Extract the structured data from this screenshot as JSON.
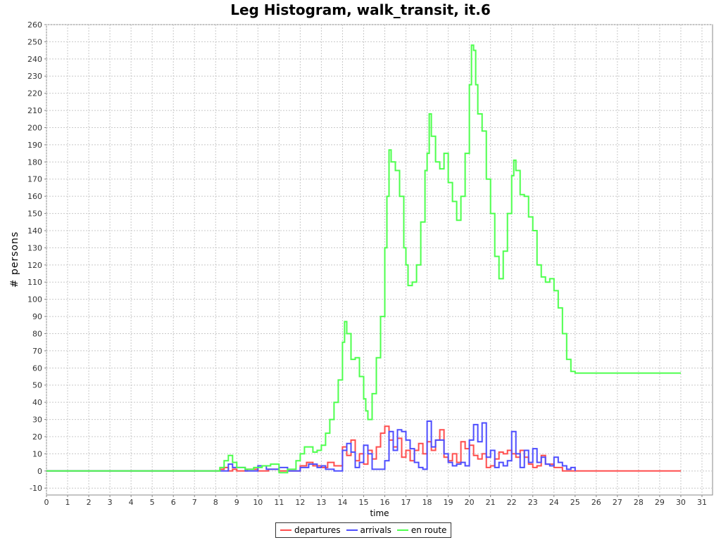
{
  "chart_data": {
    "type": "line",
    "title": "Leg Histogram, walk_transit, it.6",
    "xlabel": "time",
    "ylabel": "# persons",
    "xlim": [
      0,
      31.5
    ],
    "ylim": [
      -14,
      260
    ],
    "x_ticks": [
      0,
      1,
      2,
      3,
      4,
      5,
      6,
      7,
      8,
      9,
      10,
      11,
      12,
      13,
      14,
      15,
      16,
      17,
      18,
      19,
      20,
      21,
      22,
      23,
      24,
      25,
      26,
      27,
      28,
      29,
      30,
      31
    ],
    "y_ticks": [
      -10,
      0,
      10,
      20,
      30,
      40,
      50,
      60,
      70,
      80,
      90,
      100,
      110,
      120,
      130,
      140,
      150,
      160,
      170,
      180,
      190,
      200,
      210,
      220,
      230,
      240,
      250,
      260
    ],
    "grid": true,
    "step": true,
    "legend_position": "bottom",
    "series": [
      {
        "name": "departures",
        "color": "#ff4d4d",
        "points": [
          [
            0,
            0
          ],
          [
            8.0,
            0
          ],
          [
            8.2,
            1
          ],
          [
            8.4,
            2
          ],
          [
            8.6,
            0
          ],
          [
            8.8,
            1
          ],
          [
            9.0,
            0
          ],
          [
            9.5,
            1
          ],
          [
            10.0,
            0
          ],
          [
            10.5,
            1
          ],
          [
            11.0,
            0
          ],
          [
            11.5,
            0
          ],
          [
            12.0,
            3
          ],
          [
            12.3,
            5
          ],
          [
            12.6,
            3
          ],
          [
            13.0,
            2
          ],
          [
            13.3,
            5
          ],
          [
            13.6,
            3
          ],
          [
            14.0,
            14
          ],
          [
            14.2,
            9
          ],
          [
            14.4,
            18
          ],
          [
            14.6,
            6
          ],
          [
            14.8,
            10
          ],
          [
            15.0,
            4
          ],
          [
            15.2,
            12
          ],
          [
            15.4,
            7
          ],
          [
            15.6,
            14
          ],
          [
            15.8,
            22
          ],
          [
            16.0,
            26
          ],
          [
            16.2,
            18
          ],
          [
            16.4,
            14
          ],
          [
            16.6,
            19
          ],
          [
            16.8,
            8
          ],
          [
            17.0,
            12
          ],
          [
            17.2,
            6
          ],
          [
            17.4,
            12
          ],
          [
            17.6,
            16
          ],
          [
            17.8,
            10
          ],
          [
            18.0,
            17
          ],
          [
            18.2,
            12
          ],
          [
            18.4,
            18
          ],
          [
            18.6,
            24
          ],
          [
            18.8,
            8
          ],
          [
            19.0,
            6
          ],
          [
            19.2,
            10
          ],
          [
            19.4,
            5
          ],
          [
            19.6,
            17
          ],
          [
            19.8,
            13
          ],
          [
            20.0,
            15
          ],
          [
            20.2,
            9
          ],
          [
            20.4,
            7
          ],
          [
            20.6,
            10
          ],
          [
            20.8,
            2
          ],
          [
            21.0,
            3
          ],
          [
            21.2,
            7
          ],
          [
            21.4,
            11
          ],
          [
            21.6,
            10
          ],
          [
            21.8,
            12
          ],
          [
            22.0,
            10
          ],
          [
            22.2,
            8
          ],
          [
            22.4,
            12
          ],
          [
            22.6,
            8
          ],
          [
            22.8,
            4
          ],
          [
            23.0,
            2
          ],
          [
            23.2,
            3
          ],
          [
            23.4,
            9
          ],
          [
            23.6,
            4
          ],
          [
            23.8,
            4
          ],
          [
            24.0,
            2
          ],
          [
            24.4,
            0
          ],
          [
            30.0,
            0
          ]
        ]
      },
      {
        "name": "arrivals",
        "color": "#4d4dff",
        "points": [
          [
            0,
            0
          ],
          [
            8.4,
            0
          ],
          [
            8.6,
            4
          ],
          [
            8.8,
            2
          ],
          [
            9.0,
            2
          ],
          [
            9.4,
            0
          ],
          [
            10.0,
            3
          ],
          [
            10.4,
            1
          ],
          [
            11.0,
            2
          ],
          [
            11.4,
            0
          ],
          [
            12.0,
            2
          ],
          [
            12.4,
            4
          ],
          [
            12.8,
            2
          ],
          [
            13.0,
            3
          ],
          [
            13.2,
            1
          ],
          [
            13.6,
            0
          ],
          [
            14.0,
            12
          ],
          [
            14.2,
            16
          ],
          [
            14.4,
            11
          ],
          [
            14.6,
            2
          ],
          [
            14.8,
            5
          ],
          [
            15.0,
            15
          ],
          [
            15.2,
            10
          ],
          [
            15.4,
            1
          ],
          [
            16.0,
            6
          ],
          [
            16.2,
            23
          ],
          [
            16.4,
            12
          ],
          [
            16.6,
            24
          ],
          [
            16.8,
            23
          ],
          [
            17.0,
            18
          ],
          [
            17.2,
            13
          ],
          [
            17.4,
            5
          ],
          [
            17.6,
            2
          ],
          [
            17.8,
            1
          ],
          [
            18.0,
            29
          ],
          [
            18.2,
            14
          ],
          [
            18.4,
            18
          ],
          [
            18.6,
            18
          ],
          [
            18.8,
            10
          ],
          [
            19.0,
            5
          ],
          [
            19.2,
            3
          ],
          [
            19.4,
            4
          ],
          [
            19.6,
            5
          ],
          [
            19.8,
            3
          ],
          [
            20.0,
            18
          ],
          [
            20.2,
            27
          ],
          [
            20.4,
            17
          ],
          [
            20.6,
            28
          ],
          [
            20.8,
            8
          ],
          [
            21.0,
            12
          ],
          [
            21.2,
            2
          ],
          [
            21.4,
            5
          ],
          [
            21.6,
            3
          ],
          [
            21.8,
            6
          ],
          [
            22.0,
            23
          ],
          [
            22.2,
            10
          ],
          [
            22.4,
            2
          ],
          [
            22.6,
            12
          ],
          [
            22.8,
            5
          ],
          [
            23.0,
            13
          ],
          [
            23.2,
            5
          ],
          [
            23.4,
            8
          ],
          [
            23.6,
            4
          ],
          [
            23.8,
            3
          ],
          [
            24.0,
            8
          ],
          [
            24.2,
            5
          ],
          [
            24.4,
            3
          ],
          [
            24.6,
            1
          ],
          [
            24.8,
            2
          ],
          [
            25.0,
            0
          ]
        ]
      },
      {
        "name": "en route",
        "color": "#4dff4d",
        "points": [
          [
            0,
            0
          ],
          [
            8.0,
            0
          ],
          [
            8.2,
            2
          ],
          [
            8.4,
            6
          ],
          [
            8.6,
            9
          ],
          [
            8.8,
            5
          ],
          [
            9.0,
            2
          ],
          [
            9.4,
            1
          ],
          [
            9.8,
            2
          ],
          [
            10.2,
            3
          ],
          [
            10.6,
            4
          ],
          [
            11.0,
            -1
          ],
          [
            11.4,
            1
          ],
          [
            11.8,
            6
          ],
          [
            12.0,
            10
          ],
          [
            12.2,
            14
          ],
          [
            12.4,
            14
          ],
          [
            12.6,
            11
          ],
          [
            12.8,
            12
          ],
          [
            13.0,
            15
          ],
          [
            13.2,
            22
          ],
          [
            13.4,
            30
          ],
          [
            13.6,
            40
          ],
          [
            13.8,
            53
          ],
          [
            14.0,
            75
          ],
          [
            14.1,
            87
          ],
          [
            14.2,
            80
          ],
          [
            14.4,
            65
          ],
          [
            14.6,
            66
          ],
          [
            14.8,
            55
          ],
          [
            15.0,
            42
          ],
          [
            15.1,
            35
          ],
          [
            15.2,
            30
          ],
          [
            15.4,
            45
          ],
          [
            15.6,
            66
          ],
          [
            15.8,
            90
          ],
          [
            16.0,
            130
          ],
          [
            16.1,
            160
          ],
          [
            16.2,
            187
          ],
          [
            16.3,
            180
          ],
          [
            16.5,
            175
          ],
          [
            16.7,
            160
          ],
          [
            16.9,
            130
          ],
          [
            17.0,
            120
          ],
          [
            17.1,
            108
          ],
          [
            17.3,
            110
          ],
          [
            17.5,
            120
          ],
          [
            17.7,
            145
          ],
          [
            17.9,
            175
          ],
          [
            18.0,
            185
          ],
          [
            18.1,
            208
          ],
          [
            18.2,
            195
          ],
          [
            18.4,
            180
          ],
          [
            18.6,
            176
          ],
          [
            18.8,
            185
          ],
          [
            19.0,
            168
          ],
          [
            19.2,
            157
          ],
          [
            19.4,
            146
          ],
          [
            19.6,
            160
          ],
          [
            19.8,
            185
          ],
          [
            20.0,
            225
          ],
          [
            20.1,
            248
          ],
          [
            20.2,
            245
          ],
          [
            20.3,
            225
          ],
          [
            20.4,
            208
          ],
          [
            20.6,
            198
          ],
          [
            20.8,
            170
          ],
          [
            21.0,
            150
          ],
          [
            21.2,
            125
          ],
          [
            21.4,
            112
          ],
          [
            21.6,
            128
          ],
          [
            21.8,
            150
          ],
          [
            22.0,
            172
          ],
          [
            22.1,
            181
          ],
          [
            22.2,
            175
          ],
          [
            22.4,
            161
          ],
          [
            22.6,
            160
          ],
          [
            22.8,
            148
          ],
          [
            23.0,
            140
          ],
          [
            23.2,
            120
          ],
          [
            23.4,
            113
          ],
          [
            23.6,
            110
          ],
          [
            23.8,
            112
          ],
          [
            24.0,
            105
          ],
          [
            24.2,
            95
          ],
          [
            24.4,
            80
          ],
          [
            24.6,
            65
          ],
          [
            24.8,
            58
          ],
          [
            25.0,
            57
          ],
          [
            30.0,
            57
          ]
        ]
      }
    ]
  }
}
